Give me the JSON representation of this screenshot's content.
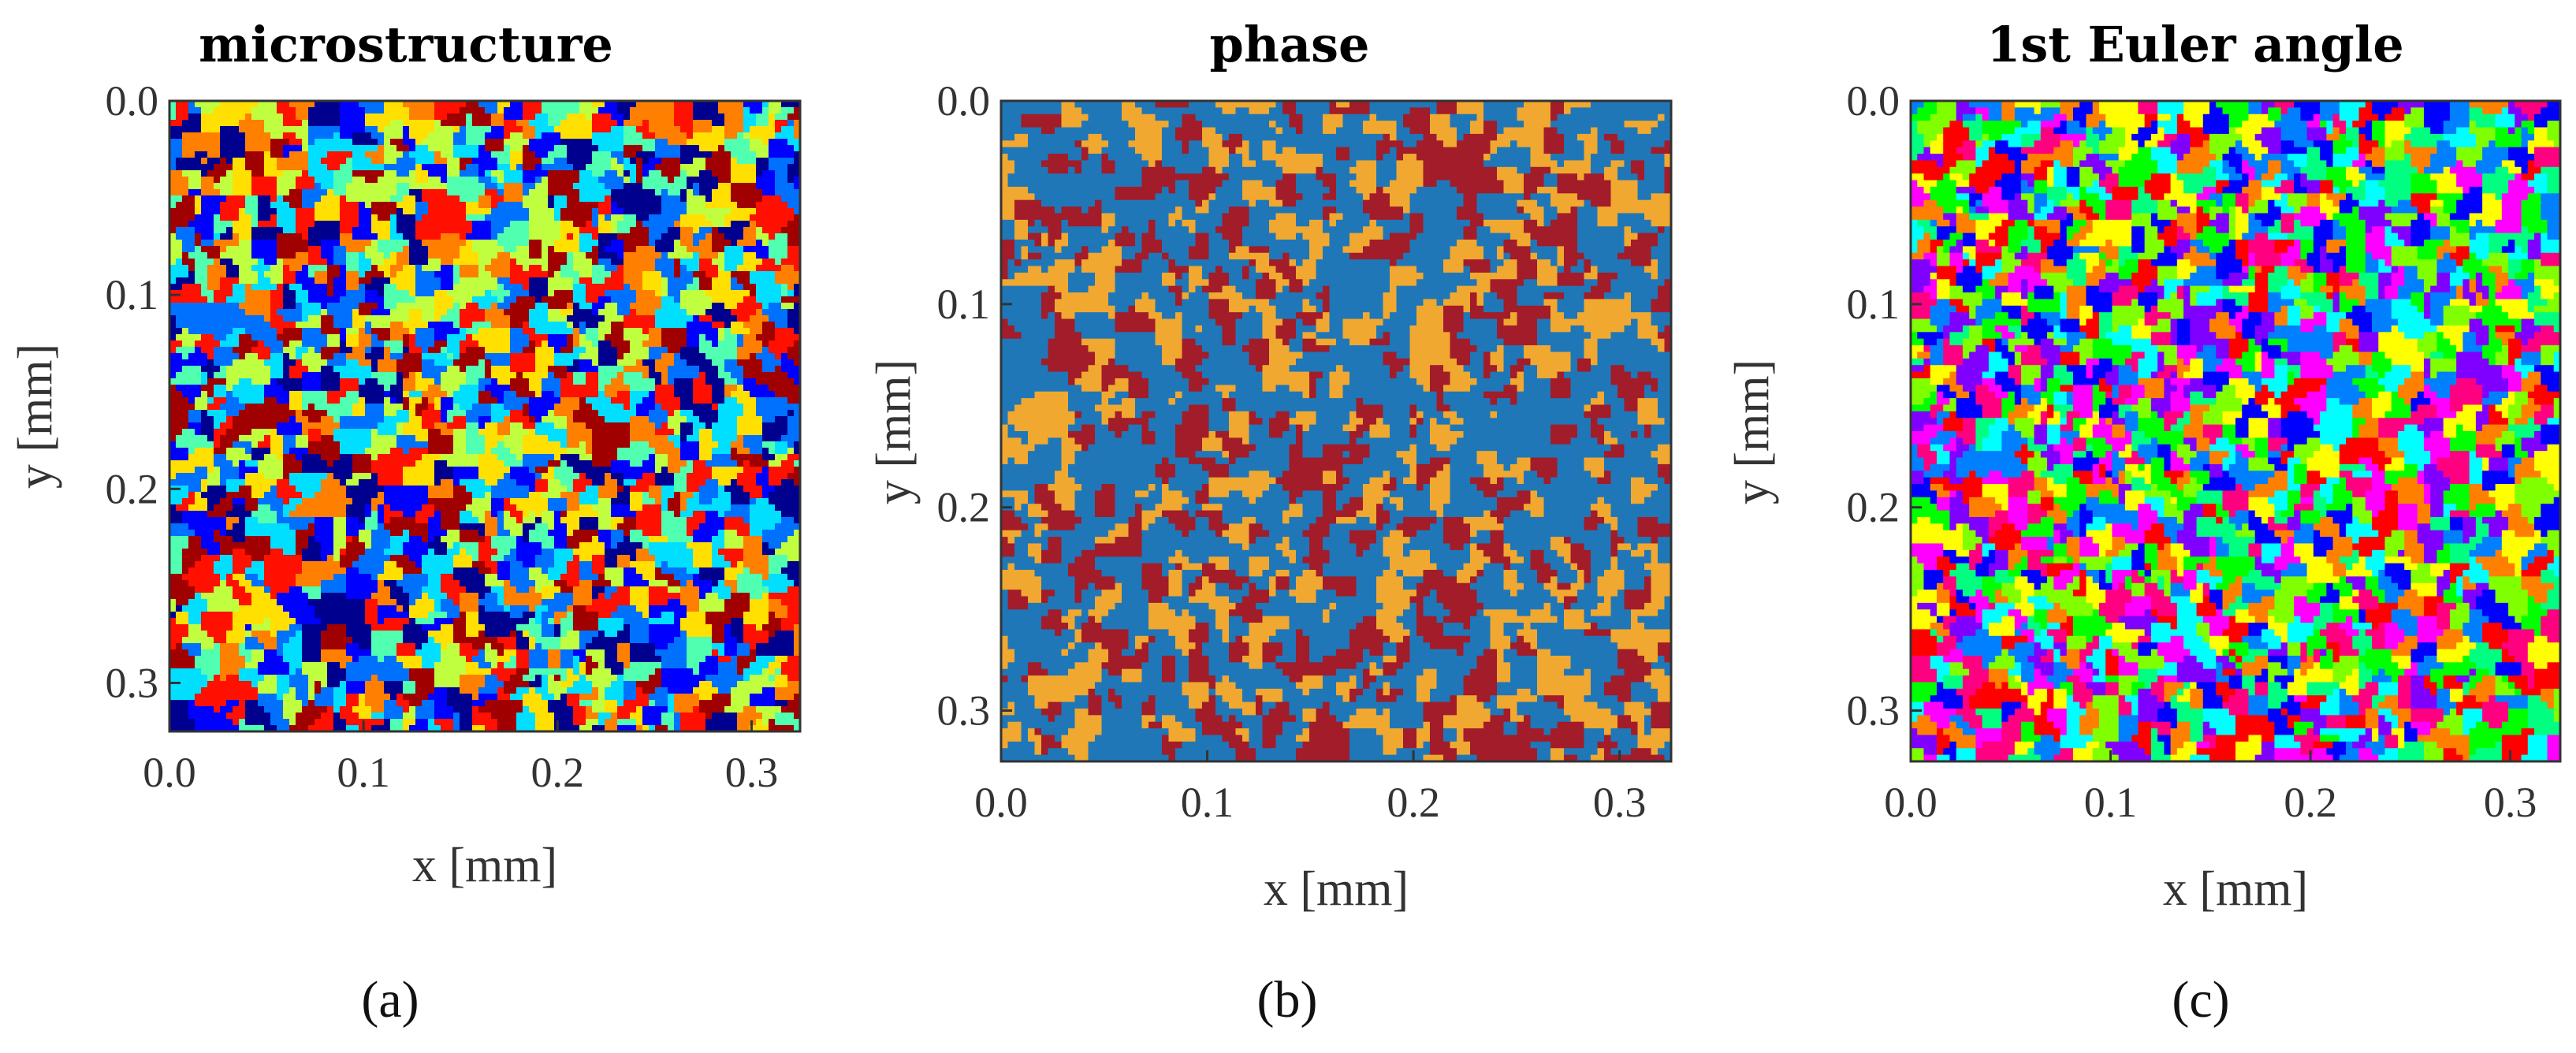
{
  "figure": {
    "panels": [
      {
        "title": "microstructure",
        "caption_letter": "a"
      },
      {
        "title": "phase",
        "caption_letter": "b"
      },
      {
        "title": "1st Euler angle",
        "caption_letter": "c"
      }
    ]
  },
  "chart_data": [
    {
      "type": "heatmap",
      "title": "microstructure",
      "xlabel": "x [mm]",
      "ylabel": "y [mm]",
      "xlim": [
        0.0,
        0.325
      ],
      "ylim": [
        0.325,
        0.0
      ],
      "xticks": [
        "0.0",
        "0.1",
        "0.2",
        "0.3"
      ],
      "yticks": [
        "0.0",
        "0.1",
        "0.2",
        "0.3"
      ],
      "xtick_values": [
        0.0,
        0.1,
        0.2,
        0.3
      ],
      "ytick_values": [
        0.0,
        0.1,
        0.2,
        0.3
      ],
      "colormap": "jet",
      "palette": [
        "#00008f",
        "#0000ff",
        "#0070ff",
        "#00dfff",
        "#50ffaf",
        "#c0ff3f",
        "#ffe000",
        "#ff8000",
        "#ff1000",
        "#a00000"
      ],
      "caption": "(a)"
    },
    {
      "type": "heatmap",
      "title": "phase",
      "xlabel": "x [mm]",
      "ylabel": "y [mm]",
      "xlim": [
        0.0,
        0.325
      ],
      "ylim": [
        0.325,
        0.0
      ],
      "xticks": [
        "0.0",
        "0.1",
        "0.2",
        "0.3"
      ],
      "yticks": [
        "0.0",
        "0.1",
        "0.2",
        "0.3"
      ],
      "xtick_values": [
        0.0,
        0.1,
        0.2,
        0.3
      ],
      "ytick_values": [
        0.0,
        0.1,
        0.2,
        0.3
      ],
      "colormap": "categorical",
      "palette": [
        "#1f77b8",
        "#f0a830",
        "#a21c2a"
      ],
      "caption": "(b)"
    },
    {
      "type": "heatmap",
      "title": "1st Euler angle",
      "xlabel": "x [mm]",
      "ylabel": "y [mm]",
      "xlim": [
        0.0,
        0.325
      ],
      "ylim": [
        0.325,
        0.0
      ],
      "xticks": [
        "0.0",
        "0.1",
        "0.2",
        "0.3"
      ],
      "yticks": [
        "0.0",
        "0.1",
        "0.2",
        "0.3"
      ],
      "xtick_values": [
        0.0,
        0.1,
        0.2,
        0.3
      ],
      "ytick_values": [
        0.0,
        0.1,
        0.2,
        0.3
      ],
      "colormap": "hsv",
      "palette": [
        "#ff0000",
        "#ff8000",
        "#ffff00",
        "#80ff00",
        "#00ff00",
        "#00ff80",
        "#00ffff",
        "#0080ff",
        "#0000ff",
        "#8000ff",
        "#ff00ff",
        "#ff0080"
      ],
      "caption": "(c)"
    }
  ]
}
